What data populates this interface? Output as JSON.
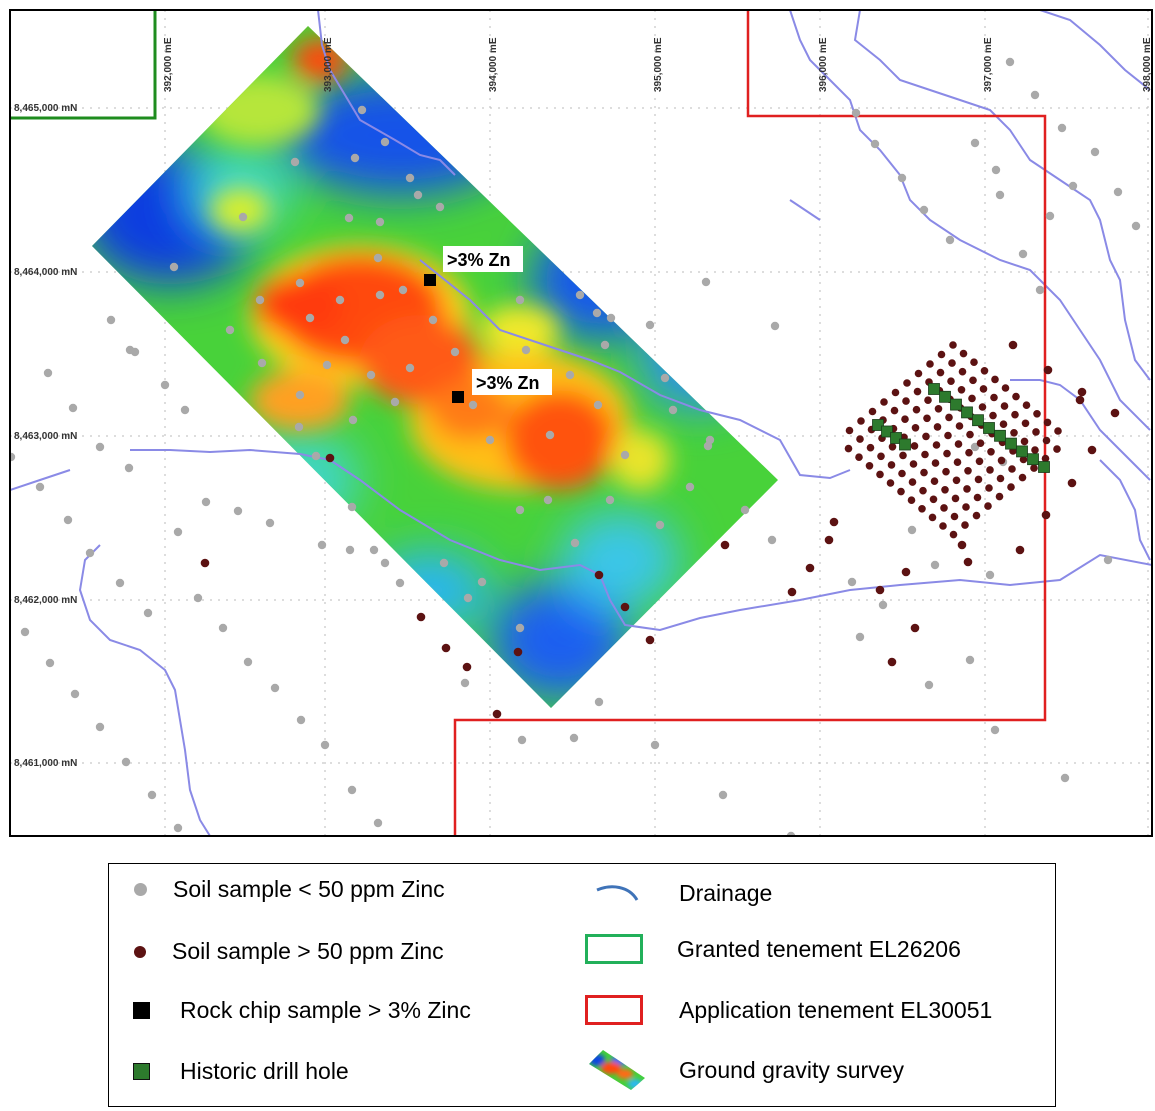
{
  "map": {
    "easting_labels": [
      "392,000 mE",
      "393,000 mE",
      "394,000 mE",
      "395,000 mE",
      "396,000 mE",
      "397,000 mE",
      "398,000 mE"
    ],
    "northing_labels": [
      "8,465,000 mN",
      "8,464,000 mN",
      "8,463,000 mN",
      "8,462,000 mN",
      "8,461,000 mN"
    ],
    "callouts": [
      ">3% Zn",
      ">3% Zn"
    ],
    "colors": {
      "soil_low": "#a9a9a9",
      "soil_high": "#5c1212",
      "rock_chip": "#000000",
      "drill_hole": "#2d7a2d",
      "drainage": "#8080e0",
      "granted_tenement": "#1e8c1e",
      "application_tenement": "#e02020"
    }
  },
  "legend": {
    "items": [
      {
        "label": "Soil sample < 50 ppm Zinc",
        "icon": "grey-dot-icon"
      },
      {
        "label": "Soil sample > 50 ppm Zinc",
        "icon": "brown-dot-icon"
      },
      {
        "label": "Rock chip sample > 3% Zinc",
        "icon": "black-square-icon"
      },
      {
        "label": "Historic drill hole",
        "icon": "green-square-icon"
      },
      {
        "label": "Drainage",
        "icon": "drainage-line-icon"
      },
      {
        "label": "Granted tenement EL26206",
        "icon": "green-outline-box-icon"
      },
      {
        "label": "Application tenement EL30051",
        "icon": "red-outline-box-icon"
      },
      {
        "label": "Ground gravity survey",
        "icon": "gravity-survey-thumbnail-icon"
      }
    ]
  }
}
